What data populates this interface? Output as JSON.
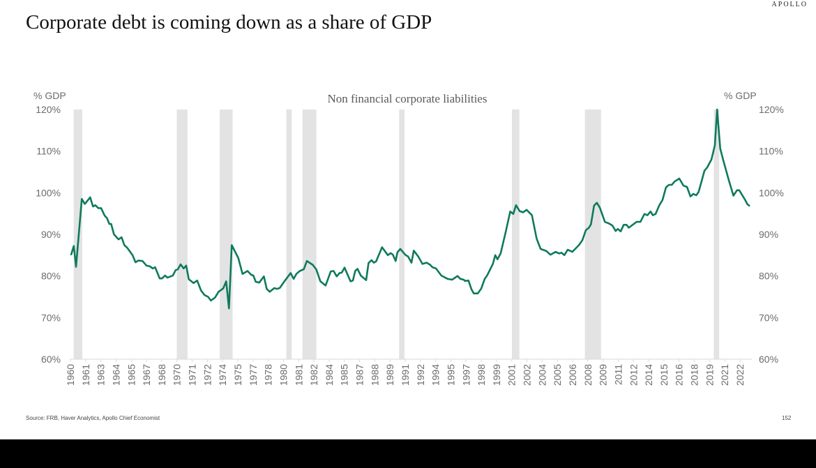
{
  "logo": "APOLLO",
  "title": "Corporate debt is coming down as a share of GDP",
  "source": "Source: FRB, Haver Analytics, Apollo Chief Economist",
  "page_number": "152",
  "chart_data": {
    "type": "line",
    "title": "Non financial corporate liabilities",
    "ylabel_left": "% GDP",
    "ylabel_right": "% GDP",
    "ylim": [
      60,
      120
    ],
    "yticks": [
      "60%",
      "70%",
      "80%",
      "90%",
      "100%",
      "110%",
      "120%"
    ],
    "xlim": [
      1960,
      2023.3
    ],
    "xtick_labels": [
      "1960",
      "1961",
      "1963",
      "1964",
      "1965",
      "1967",
      "1968",
      "1970",
      "1971",
      "1972",
      "1974",
      "1975",
      "1977",
      "1978",
      "1980",
      "1981",
      "1982",
      "1984",
      "1985",
      "1987",
      "1988",
      "1989",
      "1991",
      "1992",
      "1994",
      "1995",
      "1997",
      "1998",
      "1999",
      "2001",
      "2002",
      "2004",
      "2005",
      "2006",
      "2008",
      "2009",
      "2011",
      "2012",
      "2014",
      "2015",
      "2016",
      "2018",
      "2019",
      "2021",
      "2022"
    ],
    "grid": false,
    "line_color": "#0e7a5c",
    "recession_color": "#e3e3e3",
    "recessions": [
      [
        1960.3,
        1961.1
      ],
      [
        1969.9,
        1970.9
      ],
      [
        1973.9,
        1975.1
      ],
      [
        1980.1,
        1980.6
      ],
      [
        1981.6,
        1982.9
      ],
      [
        1990.6,
        1991.1
      ],
      [
        2001.1,
        2001.8
      ],
      [
        2007.9,
        2009.4
      ],
      [
        2019.9,
        2020.4
      ]
    ],
    "series": [
      {
        "x": [
          1960.05,
          1960.31,
          1960.52,
          1961.06,
          1961.34,
          1961.84,
          1962.1,
          1962.32,
          1962.6,
          1962.86,
          1963.18,
          1963.4,
          1963.62,
          1963.79,
          1964.05,
          1964.48,
          1964.76,
          1965.02,
          1965.28,
          1965.78,
          1966.06,
          1966.32,
          1966.71,
          1967.08,
          1967.4,
          1967.66,
          1967.88,
          1968.31,
          1968.53,
          1968.81,
          1969.03,
          1969.53,
          1969.79,
          1970.0,
          1970.26,
          1970.54,
          1970.78,
          1971.02,
          1971.47,
          1971.8,
          1972.16,
          1972.49,
          1972.81,
          1973.07,
          1973.46,
          1973.79,
          1974.22,
          1974.5,
          1974.76,
          1975.02,
          1975.63,
          1976.02,
          1976.49,
          1976.82,
          1977.03,
          1977.25,
          1977.58,
          1978.01,
          1978.27,
          1978.55,
          1978.98,
          1979.2,
          1979.48,
          1979.95,
          1980.5,
          1980.78,
          1981.04,
          1981.36,
          1981.73,
          1982.01,
          1982.55,
          1982.88,
          1983.27,
          1983.75,
          1984.24,
          1984.5,
          1984.79,
          1985.05,
          1985.26,
          1985.52,
          1986.08,
          1986.3,
          1986.51,
          1986.73,
          1987.03,
          1987.53,
          1987.75,
          1988.03,
          1988.25,
          1988.46,
          1989.01,
          1989.55,
          1989.81,
          1990.02,
          1990.28,
          1990.45,
          1990.71,
          1991.21,
          1991.43,
          1991.75,
          1991.97,
          1992.4,
          1992.77,
          1993.16,
          1993.49,
          1993.7,
          1994.03,
          1994.53,
          1995.11,
          1995.54,
          1996.04,
          1996.3,
          1996.62,
          1996.73,
          1997.06,
          1997.34,
          1997.55,
          1997.92,
          1998.25,
          1998.57,
          1998.79,
          1999.33,
          1999.55,
          1999.76,
          2000.05,
          2000.52,
          2000.95,
          2001.23,
          2001.49,
          2001.82,
          2002.14,
          2002.47,
          2002.97,
          2003.4,
          2003.77,
          2004.31,
          2004.69,
          2005.17,
          2005.5,
          2005.71,
          2005.99,
          2006.3,
          2006.73,
          2007.34,
          2007.66,
          2007.99,
          2008.27,
          2008.46,
          2008.75,
          2009.01,
          2009.29,
          2009.76,
          2010.15,
          2010.47,
          2010.76,
          2010.97,
          2011.23,
          2011.51,
          2011.77,
          2011.99,
          2012.71,
          2013.07,
          2013.44,
          2013.72,
          2014.01,
          2014.22,
          2014.48,
          2014.81,
          2015.13,
          2015.45,
          2015.73,
          2015.99,
          2016.25,
          2016.69,
          2017.08,
          2017.4,
          2017.73,
          2017.99,
          2018.27,
          2018.49,
          2019.03,
          2019.29,
          2019.68,
          2020.0,
          2020.21,
          2020.5,
          2020.76,
          2021.3,
          2021.73,
          2022.06,
          2022.27,
          2022.81,
          2023.03,
          2023.25
        ],
        "y": [
          85.0,
          87.2,
          82.2,
          98.5,
          97.3,
          98.9,
          96.7,
          97.0,
          96.3,
          96.3,
          94.5,
          93.9,
          92.5,
          92.5,
          90.0,
          88.8,
          89.3,
          87.4,
          86.8,
          85.0,
          83.3,
          83.7,
          83.6,
          82.5,
          82.3,
          81.8,
          82.1,
          79.4,
          79.4,
          80.1,
          79.6,
          80.1,
          81.4,
          81.6,
          82.8,
          81.8,
          82.5,
          79.2,
          78.3,
          78.9,
          76.5,
          75.4,
          75.0,
          74.1,
          74.8,
          76.2,
          77.0,
          78.7,
          72.2,
          87.4,
          84.3,
          80.5,
          81.2,
          80.3,
          80.1,
          78.6,
          78.4,
          79.9,
          76.9,
          76.2,
          77.1,
          76.9,
          77.1,
          78.8,
          80.7,
          79.3,
          80.5,
          81.2,
          81.6,
          83.6,
          82.7,
          81.6,
          78.7,
          77.7,
          81.1,
          81.2,
          79.9,
          80.7,
          80.8,
          82.0,
          78.7,
          78.9,
          81.2,
          81.7,
          80.1,
          79.0,
          83.1,
          83.8,
          83.2,
          83.5,
          86.9,
          85.0,
          85.5,
          85.1,
          83.6,
          85.7,
          86.5,
          85.0,
          84.7,
          83.2,
          86.1,
          84.6,
          82.9,
          83.2,
          82.7,
          82.1,
          81.8,
          80.1,
          79.3,
          79.1,
          80.0,
          79.3,
          79.1,
          78.8,
          78.9,
          76.8,
          75.8,
          75.8,
          77.0,
          79.3,
          80.1,
          82.9,
          85.0,
          84.0,
          85.4,
          90.5,
          95.5,
          94.9,
          97.0,
          95.6,
          95.3,
          95.9,
          94.6,
          89.0,
          86.5,
          86.0,
          85.1,
          85.8,
          85.4,
          85.6,
          85.0,
          86.3,
          85.8,
          87.4,
          88.6,
          91.0,
          91.6,
          92.4,
          96.9,
          97.6,
          96.4,
          93.0,
          92.6,
          92.1,
          90.8,
          91.3,
          90.7,
          92.3,
          92.3,
          91.6,
          93.0,
          93.0,
          94.9,
          94.6,
          95.5,
          94.6,
          94.9,
          96.9,
          98.3,
          101.3,
          101.9,
          101.9,
          102.7,
          103.4,
          101.7,
          101.4,
          99.1,
          99.7,
          99.4,
          100.2,
          105.3,
          106.1,
          108.0,
          111.4,
          120.0,
          110.6,
          108.0,
          103.0,
          99.3,
          100.6,
          100.6,
          98.3,
          97.2,
          96.8
        ]
      }
    ]
  }
}
